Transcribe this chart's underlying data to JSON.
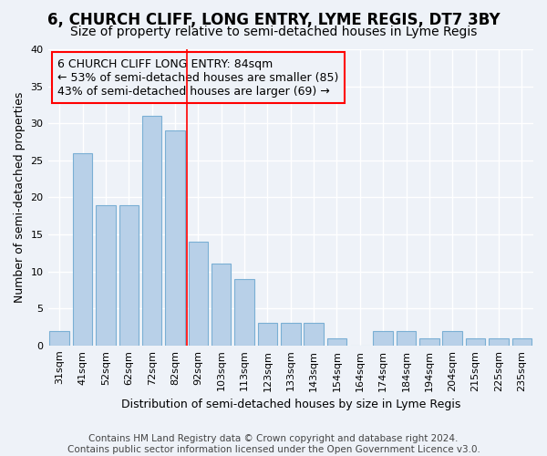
{
  "title": "6, CHURCH CLIFF, LONG ENTRY, LYME REGIS, DT7 3BY",
  "subtitle": "Size of property relative to semi-detached houses in Lyme Regis",
  "xlabel": "Distribution of semi-detached houses by size in Lyme Regis",
  "ylabel": "Number of semi-detached properties",
  "categories": [
    "31sqm",
    "41sqm",
    "52sqm",
    "62sqm",
    "72sqm",
    "82sqm",
    "92sqm",
    "103sqm",
    "113sqm",
    "123sqm",
    "133sqm",
    "143sqm",
    "154sqm",
    "164sqm",
    "174sqm",
    "184sqm",
    "194sqm",
    "204sqm",
    "215sqm",
    "225sqm",
    "235sqm"
  ],
  "values": [
    2,
    26,
    19,
    19,
    31,
    29,
    14,
    11,
    9,
    3,
    3,
    3,
    1,
    0,
    2,
    2,
    1,
    2,
    1,
    1,
    1
  ],
  "bar_color": "#b8d0e8",
  "bar_edge_color": "#7aafd4",
  "red_line_x": 5.5,
  "annotation_line1": "6 CHURCH CLIFF LONG ENTRY: 84sqm",
  "annotation_line2": "← 53% of semi-detached houses are smaller (85)",
  "annotation_line3": "43% of semi-detached houses are larger (69) →",
  "footer_line1": "Contains HM Land Registry data © Crown copyright and database right 2024.",
  "footer_line2": "Contains public sector information licensed under the Open Government Licence v3.0.",
  "ylim": [
    0,
    40
  ],
  "yticks": [
    0,
    5,
    10,
    15,
    20,
    25,
    30,
    35,
    40
  ],
  "background_color": "#eef2f8",
  "grid_color": "#ffffff",
  "title_fontsize": 12,
  "subtitle_fontsize": 10,
  "axis_label_fontsize": 9,
  "tick_fontsize": 8,
  "annotation_fontsize": 9,
  "footer_fontsize": 7.5
}
